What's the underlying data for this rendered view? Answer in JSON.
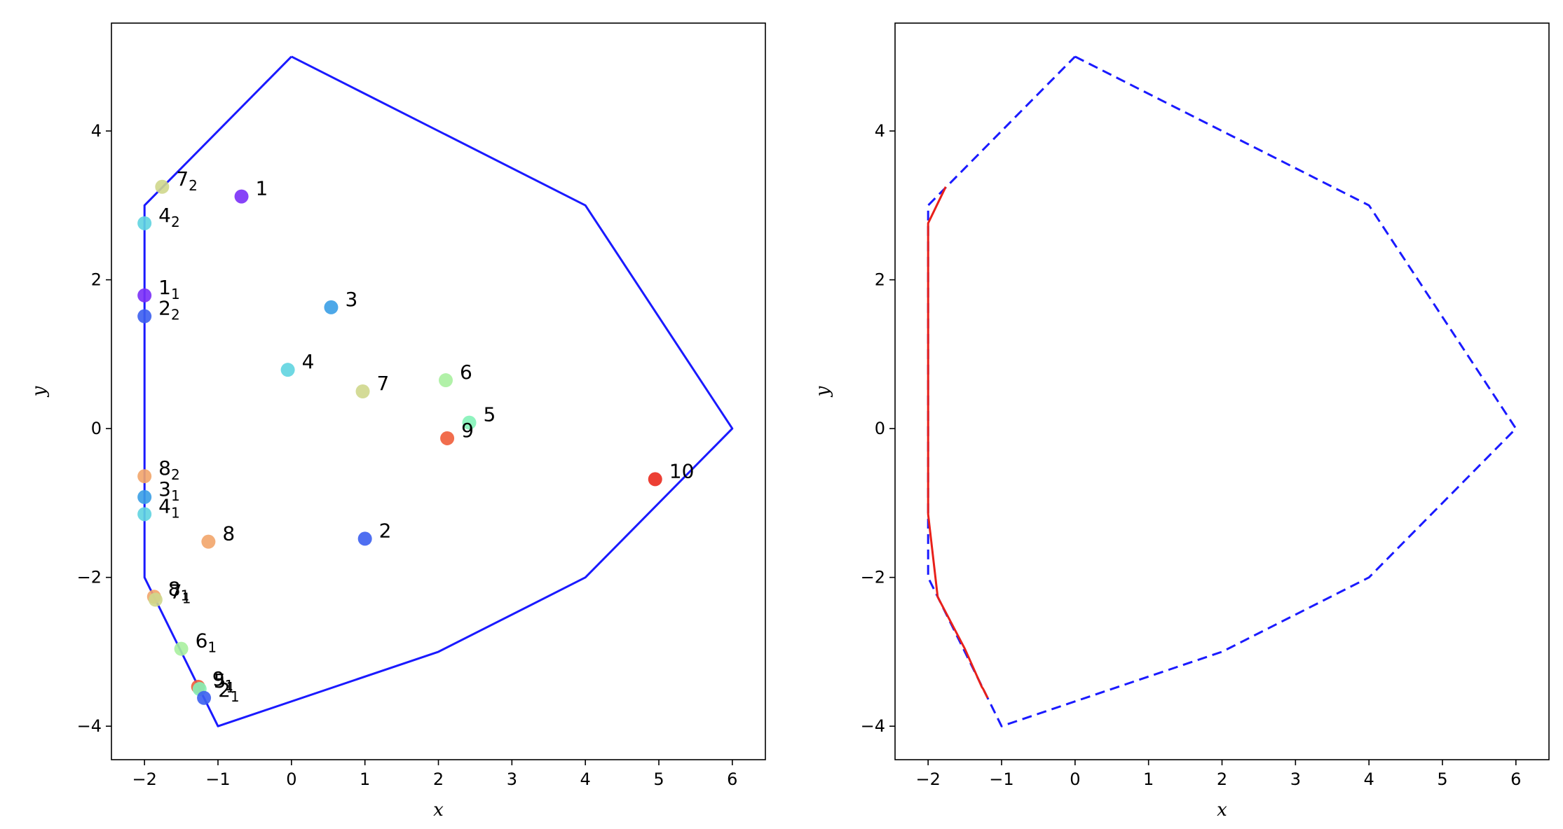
{
  "chart_data": [
    {
      "type": "scatter",
      "title": "",
      "xlabel": "x",
      "ylabel": "y",
      "xlim": [
        -2.45,
        6.45
      ],
      "ylim": [
        -4.45,
        5.45
      ],
      "x_ticks": [
        -2,
        -1,
        0,
        1,
        2,
        3,
        4,
        5,
        6
      ],
      "y_ticks": [
        -4,
        -2,
        0,
        2,
        4
      ],
      "grid": false,
      "polygon": {
        "name": "",
        "color": "#1a1aff",
        "style": "solid",
        "points": [
          [
            0,
            5
          ],
          [
            4,
            3
          ],
          [
            6,
            0
          ],
          [
            4,
            -2
          ],
          [
            2,
            -3
          ],
          [
            -1,
            -4
          ],
          [
            -2,
            -2
          ],
          [
            -2,
            3
          ],
          [
            0,
            5
          ]
        ]
      },
      "points": [
        {
          "label": "1",
          "sub": "",
          "x": -0.68,
          "y": 3.12,
          "color": "#7a2ff7"
        },
        {
          "label": "2",
          "sub": "",
          "x": 1.0,
          "y": -1.48,
          "color": "#3c5ff0"
        },
        {
          "label": "3",
          "sub": "",
          "x": 0.54,
          "y": 1.63,
          "color": "#3a9ee6"
        },
        {
          "label": "4",
          "sub": "",
          "x": -0.05,
          "y": 0.79,
          "color": "#5fd4e0"
        },
        {
          "label": "5",
          "sub": "",
          "x": 2.42,
          "y": 0.08,
          "color": "#84f2b8"
        },
        {
          "label": "6",
          "sub": "",
          "x": 2.1,
          "y": 0.65,
          "color": "#a8f09e"
        },
        {
          "label": "7",
          "sub": "",
          "x": 0.97,
          "y": 0.5,
          "color": "#cfd78c"
        },
        {
          "label": "8",
          "sub": "",
          "x": -1.13,
          "y": -1.52,
          "color": "#f2a56a"
        },
        {
          "label": "9",
          "sub": "",
          "x": 2.12,
          "y": -0.13,
          "color": "#f05d3a"
        },
        {
          "label": "10",
          "sub": "",
          "x": 4.95,
          "y": -0.68,
          "color": "#ea2a1e"
        },
        {
          "label": "7",
          "sub": "2",
          "x": -1.76,
          "y": 3.25,
          "color": "#cfd78c"
        },
        {
          "label": "4",
          "sub": "2",
          "x": -2.0,
          "y": 2.76,
          "color": "#5fd4e0"
        },
        {
          "label": "1",
          "sub": "1",
          "x": -2.0,
          "y": 1.79,
          "color": "#7a2ff7"
        },
        {
          "label": "2",
          "sub": "2",
          "x": -2.0,
          "y": 1.51,
          "color": "#3c5ff0"
        },
        {
          "label": "8",
          "sub": "2",
          "x": -2.0,
          "y": -0.64,
          "color": "#f2a56a"
        },
        {
          "label": "3",
          "sub": "1",
          "x": -2.0,
          "y": -0.92,
          "color": "#3a9ee6"
        },
        {
          "label": "4",
          "sub": "1",
          "x": -2.0,
          "y": -1.15,
          "color": "#5fd4e0"
        },
        {
          "label": "8",
          "sub": "1",
          "x": -1.87,
          "y": -2.26,
          "color": "#f2a56a"
        },
        {
          "label": "7",
          "sub": "1",
          "x": -1.85,
          "y": -2.3,
          "color": "#cfd78c"
        },
        {
          "label": "6",
          "sub": "1",
          "x": -1.5,
          "y": -2.96,
          "color": "#a8f09e"
        },
        {
          "label": "9",
          "sub": "1",
          "x": -1.27,
          "y": -3.47,
          "color": "#f05d3a"
        },
        {
          "label": "5",
          "sub": "1",
          "x": -1.25,
          "y": -3.5,
          "color": "#84f2b8"
        },
        {
          "label": "2",
          "sub": "1",
          "x": -1.19,
          "y": -3.62,
          "color": "#3c5ff0"
        }
      ]
    },
    {
      "type": "line",
      "title": "",
      "xlabel": "x",
      "ylabel": "y",
      "xlim": [
        -2.45,
        6.45
      ],
      "ylim": [
        -4.45,
        5.45
      ],
      "x_ticks": [
        -2,
        -1,
        0,
        1,
        2,
        3,
        4,
        5,
        6
      ],
      "y_ticks": [
        -4,
        -2,
        0,
        2,
        4
      ],
      "grid": false,
      "series": [
        {
          "name": "",
          "color": "#1a1aff",
          "style": "dashed",
          "points": [
            [
              0,
              5
            ],
            [
              4,
              3
            ],
            [
              6,
              0
            ],
            [
              4,
              -2
            ],
            [
              2,
              -3
            ],
            [
              -1,
              -4
            ],
            [
              -2,
              -2
            ],
            [
              -2,
              3
            ],
            [
              0,
              5
            ]
          ]
        },
        {
          "name": "",
          "color": "#e8201a",
          "style": "solid",
          "points": [
            [
              -1.76,
              3.25
            ],
            [
              -2.0,
              2.76
            ],
            [
              -2.0,
              1.79
            ],
            [
              -2.0,
              1.51
            ],
            [
              -2.0,
              -0.64
            ],
            [
              -2.0,
              -0.92
            ],
            [
              -2.0,
              -1.15
            ],
            [
              -1.87,
              -2.26
            ],
            [
              -1.85,
              -2.3
            ],
            [
              -1.5,
              -2.96
            ],
            [
              -1.27,
              -3.47
            ],
            [
              -1.25,
              -3.5
            ],
            [
              -1.19,
              -3.62
            ]
          ]
        }
      ]
    }
  ]
}
